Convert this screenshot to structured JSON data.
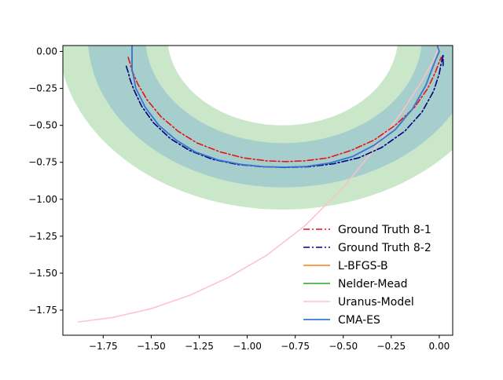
{
  "chart_data": {
    "type": "line",
    "title": "",
    "xlabel": "",
    "ylabel": "",
    "xlim": [
      -1.96,
      0.07
    ],
    "ylim": [
      -1.92,
      0.04
    ],
    "xticks": [
      {
        "v": -1.75,
        "label": "−1.75"
      },
      {
        "v": -1.5,
        "label": "−1.50"
      },
      {
        "v": -1.25,
        "label": "−1.25"
      },
      {
        "v": -1.0,
        "label": "−1.00"
      },
      {
        "v": -0.75,
        "label": "−0.75"
      },
      {
        "v": -0.5,
        "label": "−0.50"
      },
      {
        "v": -0.25,
        "label": "−0.25"
      },
      {
        "v": 0.0,
        "label": "0.00"
      }
    ],
    "yticks": [
      {
        "v": 0.0,
        "label": "0.00"
      },
      {
        "v": -0.25,
        "label": "−0.25"
      },
      {
        "v": -0.5,
        "label": "−0.50"
      },
      {
        "v": -0.75,
        "label": "−0.75"
      },
      {
        "v": -1.0,
        "label": "−1.00"
      },
      {
        "v": -1.25,
        "label": "−1.25"
      },
      {
        "v": -1.5,
        "label": "−1.50"
      },
      {
        "v": -1.75,
        "label": "−1.75"
      }
    ],
    "grid": false,
    "legend_position": "lower-right",
    "bands": [
      {
        "name": "band-outer",
        "color": "#2ca02c",
        "opacity": 0.25,
        "center": [
          -0.815,
          0.1
        ],
        "r_outer": 1.17,
        "r_inner": 0.6
      },
      {
        "name": "band-inner",
        "color": "#4a90d9",
        "opacity": 0.28,
        "center": [
          -0.81,
          0.1
        ],
        "r_outer": 1.02,
        "r_inner": 0.72
      }
    ],
    "series": [
      {
        "name": "Ground Truth 8-1",
        "color": "#e8140f",
        "style": "dashdot",
        "width": 1.6,
        "x": [
          -1.62,
          -1.61,
          -1.6,
          -1.57,
          -1.52,
          -1.45,
          -1.36,
          -1.26,
          -1.14,
          -1.02,
          -0.9,
          -0.8,
          -0.7,
          -0.58,
          -0.46,
          -0.34,
          -0.23,
          -0.13,
          -0.06,
          -0.02,
          0.0,
          0.01,
          0.015
        ],
        "y": [
          -0.04,
          -0.08,
          -0.13,
          -0.22,
          -0.33,
          -0.44,
          -0.54,
          -0.62,
          -0.68,
          -0.72,
          -0.74,
          -0.745,
          -0.74,
          -0.72,
          -0.67,
          -0.6,
          -0.5,
          -0.38,
          -0.25,
          -0.14,
          -0.07,
          -0.04,
          -0.05
        ]
      },
      {
        "name": "Ground Truth 8-2",
        "color": "#000080",
        "style": "dashdot",
        "width": 1.6,
        "x": [
          -1.63,
          -1.62,
          -1.61,
          -1.59,
          -1.55,
          -1.49,
          -1.4,
          -1.3,
          -1.18,
          -1.05,
          -0.92,
          -0.8,
          -0.68,
          -0.55,
          -0.42,
          -0.3,
          -0.18,
          -0.09,
          -0.03,
          0.0,
          0.01,
          0.02,
          0.02
        ],
        "y": [
          -0.1,
          -0.14,
          -0.19,
          -0.26,
          -0.37,
          -0.48,
          -0.59,
          -0.67,
          -0.73,
          -0.765,
          -0.78,
          -0.785,
          -0.78,
          -0.76,
          -0.72,
          -0.65,
          -0.54,
          -0.41,
          -0.27,
          -0.15,
          -0.08,
          -0.02,
          -0.1
        ]
      },
      {
        "name": "L-BFGS-B",
        "color": "#ff7f0e",
        "style": "solid",
        "width": 1.5,
        "x": [
          -1.6,
          -1.6,
          -1.58,
          -1.53,
          -1.46,
          -1.37,
          -1.27,
          -1.15,
          -1.03,
          -0.91,
          -0.8,
          -0.69,
          -0.57,
          -0.45,
          -0.34,
          -0.23,
          -0.14,
          -0.07,
          -0.02,
          0.0,
          -0.01
        ],
        "y": [
          0.04,
          -0.12,
          -0.25,
          -0.38,
          -0.5,
          -0.6,
          -0.68,
          -0.735,
          -0.765,
          -0.78,
          -0.783,
          -0.778,
          -0.755,
          -0.71,
          -0.635,
          -0.53,
          -0.39,
          -0.23,
          -0.06,
          0.0,
          0.04
        ]
      },
      {
        "name": "Nelder-Mead",
        "color": "#2ca02c",
        "style": "solid",
        "width": 1.5,
        "x": [
          -1.6,
          -1.6,
          -1.58,
          -1.53,
          -1.46,
          -1.37,
          -1.27,
          -1.15,
          -1.03,
          -0.91,
          -0.8,
          -0.69,
          -0.57,
          -0.45,
          -0.34,
          -0.23,
          -0.14,
          -0.07,
          -0.02,
          0.0,
          -0.01
        ],
        "y": [
          0.04,
          -0.12,
          -0.25,
          -0.38,
          -0.5,
          -0.6,
          -0.68,
          -0.735,
          -0.765,
          -0.78,
          -0.783,
          -0.778,
          -0.755,
          -0.71,
          -0.635,
          -0.53,
          -0.39,
          -0.23,
          -0.06,
          0.0,
          0.04
        ]
      },
      {
        "name": "Uranus-Model",
        "color": "#ffc0cb",
        "style": "solid",
        "width": 1.5,
        "x": [
          -1.88,
          -1.7,
          -1.5,
          -1.3,
          -1.1,
          -0.9,
          -0.7,
          -0.5,
          -0.35,
          -0.2,
          -0.1,
          -0.03,
          0.0
        ],
        "y": [
          -1.83,
          -1.8,
          -1.74,
          -1.65,
          -1.53,
          -1.38,
          -1.18,
          -0.92,
          -0.68,
          -0.42,
          -0.22,
          -0.06,
          0.04
        ]
      },
      {
        "name": "CMA-ES",
        "color": "#3a78d4",
        "style": "solid",
        "width": 1.8,
        "x": [
          -1.6,
          -1.6,
          -1.58,
          -1.53,
          -1.46,
          -1.37,
          -1.27,
          -1.15,
          -1.03,
          -0.91,
          -0.8,
          -0.69,
          -0.57,
          -0.45,
          -0.34,
          -0.23,
          -0.14,
          -0.07,
          -0.02,
          0.0,
          -0.01
        ],
        "y": [
          0.04,
          -0.12,
          -0.25,
          -0.38,
          -0.5,
          -0.6,
          -0.68,
          -0.735,
          -0.765,
          -0.78,
          -0.783,
          -0.778,
          -0.755,
          -0.71,
          -0.635,
          -0.53,
          -0.39,
          -0.23,
          -0.06,
          0.0,
          0.04
        ]
      }
    ]
  }
}
